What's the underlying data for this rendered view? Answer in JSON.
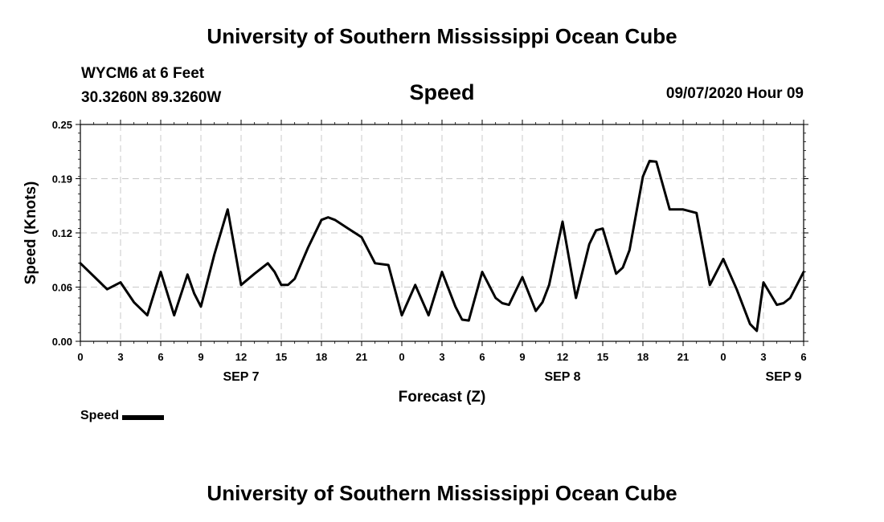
{
  "header": {
    "title": "University of Southern Mississippi Ocean Cube",
    "station_name": "WYCM6 at 6 Feet",
    "coordinates": "30.3260N 89.3260W",
    "datetime": "09/07/2020 Hour 09"
  },
  "footer": {
    "title": "University of Southern Mississippi Ocean Cube"
  },
  "legend": {
    "label": "Speed",
    "color": "#000000"
  },
  "chart_data": {
    "type": "line",
    "title": "Speed",
    "xlabel": "Forecast (Z)",
    "ylabel": "Speed (Knots)",
    "x_unit": "hours from 00Z SEP 7",
    "xlim": [
      0,
      54
    ],
    "ylim": [
      0,
      0.25
    ],
    "grid": true,
    "legend_position": "bottom-left",
    "y_ticks": [
      "0.00",
      "0.06",
      "0.12",
      "0.19",
      "0.25"
    ],
    "y_tick_values": [
      0,
      0.0625,
      0.125,
      0.1875,
      0.25
    ],
    "x_ticks": [
      {
        "x": 0,
        "label": "0"
      },
      {
        "x": 3,
        "label": "3"
      },
      {
        "x": 6,
        "label": "6"
      },
      {
        "x": 9,
        "label": "9"
      },
      {
        "x": 12,
        "label": "12"
      },
      {
        "x": 15,
        "label": "15"
      },
      {
        "x": 18,
        "label": "18"
      },
      {
        "x": 21,
        "label": "21"
      },
      {
        "x": 24,
        "label": "0"
      },
      {
        "x": 27,
        "label": "3"
      },
      {
        "x": 30,
        "label": "6"
      },
      {
        "x": 33,
        "label": "9"
      },
      {
        "x": 36,
        "label": "12"
      },
      {
        "x": 39,
        "label": "15"
      },
      {
        "x": 42,
        "label": "18"
      },
      {
        "x": 45,
        "label": "21"
      },
      {
        "x": 48,
        "label": "0"
      },
      {
        "x": 51,
        "label": "3"
      },
      {
        "x": 54,
        "label": "6"
      }
    ],
    "day_labels": [
      {
        "x": 12,
        "label": "SEP 7"
      },
      {
        "x": 36,
        "label": "SEP 8"
      },
      {
        "x": 52.5,
        "label": "SEP 9"
      }
    ],
    "series": [
      {
        "name": "Speed",
        "color": "#000000",
        "points": [
          [
            0,
            0.09
          ],
          [
            1,
            0.075
          ],
          [
            2,
            0.06
          ],
          [
            3,
            0.068
          ],
          [
            4,
            0.045
          ],
          [
            5,
            0.03
          ],
          [
            6,
            0.08
          ],
          [
            7,
            0.03
          ],
          [
            8,
            0.077
          ],
          [
            8.5,
            0.055
          ],
          [
            9,
            0.04
          ],
          [
            10,
            0.1
          ],
          [
            11,
            0.152
          ],
          [
            12,
            0.065
          ],
          [
            13,
            0.078
          ],
          [
            14,
            0.09
          ],
          [
            14.5,
            0.08
          ],
          [
            15,
            0.065
          ],
          [
            15.5,
            0.065
          ],
          [
            16,
            0.072
          ],
          [
            17,
            0.108
          ],
          [
            18,
            0.14
          ],
          [
            18.5,
            0.143
          ],
          [
            19,
            0.14
          ],
          [
            20,
            0.13
          ],
          [
            21,
            0.12
          ],
          [
            22,
            0.09
          ],
          [
            23,
            0.088
          ],
          [
            24,
            0.03
          ],
          [
            25,
            0.065
          ],
          [
            26,
            0.03
          ],
          [
            27,
            0.08
          ],
          [
            28,
            0.04
          ],
          [
            28.5,
            0.025
          ],
          [
            29,
            0.024
          ],
          [
            30,
            0.08
          ],
          [
            31,
            0.05
          ],
          [
            31.5,
            0.044
          ],
          [
            32,
            0.042
          ],
          [
            33,
            0.074
          ],
          [
            34,
            0.035
          ],
          [
            34.5,
            0.045
          ],
          [
            35,
            0.065
          ],
          [
            36,
            0.138
          ],
          [
            37,
            0.05
          ],
          [
            38,
            0.112
          ],
          [
            38.5,
            0.128
          ],
          [
            39,
            0.13
          ],
          [
            40,
            0.078
          ],
          [
            40.5,
            0.085
          ],
          [
            41,
            0.105
          ],
          [
            42,
            0.19
          ],
          [
            42.5,
            0.208
          ],
          [
            43,
            0.207
          ],
          [
            44,
            0.152
          ],
          [
            45,
            0.152
          ],
          [
            46,
            0.148
          ],
          [
            47,
            0.065
          ],
          [
            48,
            0.095
          ],
          [
            49,
            0.06
          ],
          [
            50,
            0.02
          ],
          [
            50.5,
            0.012
          ],
          [
            51,
            0.068
          ],
          [
            52,
            0.042
          ],
          [
            52.5,
            0.044
          ],
          [
            53,
            0.05
          ],
          [
            54,
            0.08
          ]
        ]
      }
    ]
  }
}
